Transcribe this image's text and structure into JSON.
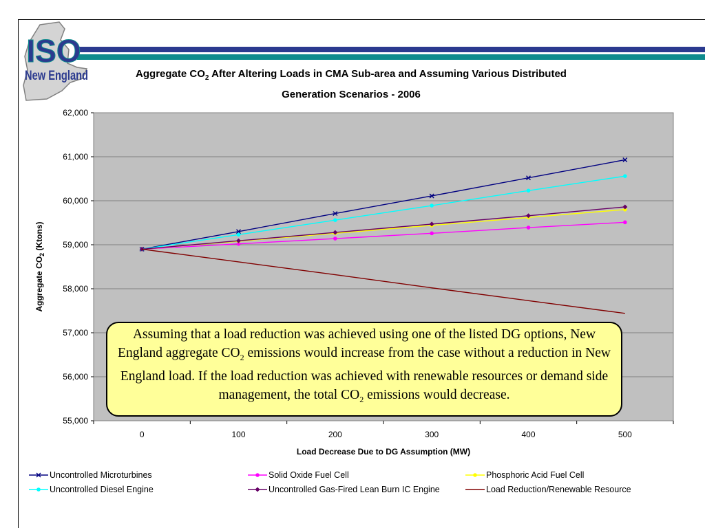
{
  "logo": {
    "line1": "ISO",
    "line2": "New England"
  },
  "colors": {
    "band_blue": "#2b3a8f",
    "band_teal": "#0f8b8d",
    "plot_bg": "#c0c0c0",
    "callout_bg": "#ffff99"
  },
  "title": {
    "part1": "Aggregate CO",
    "sub": "2",
    "part2": " After Altering Loads in CMA Sub-area and Assuming Various Distributed",
    "line2": "Generation Scenarios - 2006"
  },
  "callout": {
    "p1": "Assuming that a load reduction was achieved using one of the listed DG options, New England aggregate CO",
    "sub1": "2",
    "p2": " emissions would increase from the case without a reduction in New England load.  If the load reduction was achieved with renewable resources or demand side management, the total CO",
    "sub2": "2",
    "p3": " emissions would decrease."
  },
  "chart_data": {
    "type": "line",
    "title": "Aggregate CO2 After Altering Loads in CMA Sub-area and Assuming Various Distributed Generation Scenarios - 2006",
    "xlabel": "Load Decrease Due to DG Assumption (MW)",
    "ylabel_part1": "Aggregate CO",
    "ylabel_sub": "2",
    "ylabel_part2": " (Ktons)",
    "x": [
      0,
      100,
      200,
      300,
      400,
      500
    ],
    "ylim": [
      55000,
      62000
    ],
    "yticks": [
      55000,
      56000,
      57000,
      58000,
      59000,
      60000,
      61000,
      62000
    ],
    "ytick_labels": [
      "55,000",
      "56,000",
      "57,000",
      "58,000",
      "59,000",
      "60,000",
      "61,000",
      "62,000"
    ],
    "grid": true,
    "legend_position": "bottom",
    "series": [
      {
        "name": "Uncontrolled Microturbines",
        "color": "#000080",
        "marker": "x",
        "values": [
          58900,
          59300,
          59710,
          60110,
          60520,
          60930
        ]
      },
      {
        "name": "Solid Oxide Fuel Cell",
        "color": "#ff00ff",
        "marker": "circle",
        "values": [
          58900,
          59020,
          59140,
          59260,
          59390,
          59510
        ]
      },
      {
        "name": "Phosphoric Acid Fuel Cell",
        "color": "#ffff00",
        "marker": "circle",
        "values": [
          58900,
          59080,
          59260,
          59440,
          59620,
          59800
        ]
      },
      {
        "name": "Uncontrolled Diesel Engine",
        "color": "#00ffff",
        "marker": "circle",
        "values": [
          58900,
          59230,
          59560,
          59890,
          60230,
          60560
        ]
      },
      {
        "name": "Uncontrolled Gas-Fired Lean Burn IC Engine",
        "color": "#660066",
        "marker": "diamond",
        "values": [
          58900,
          59090,
          59280,
          59470,
          59660,
          59860
        ]
      },
      {
        "name": "Load Reduction/Renewable Resource",
        "color": "#800000",
        "marker": "none",
        "values": [
          58900,
          58610,
          58320,
          58020,
          57730,
          57440
        ]
      }
    ]
  }
}
